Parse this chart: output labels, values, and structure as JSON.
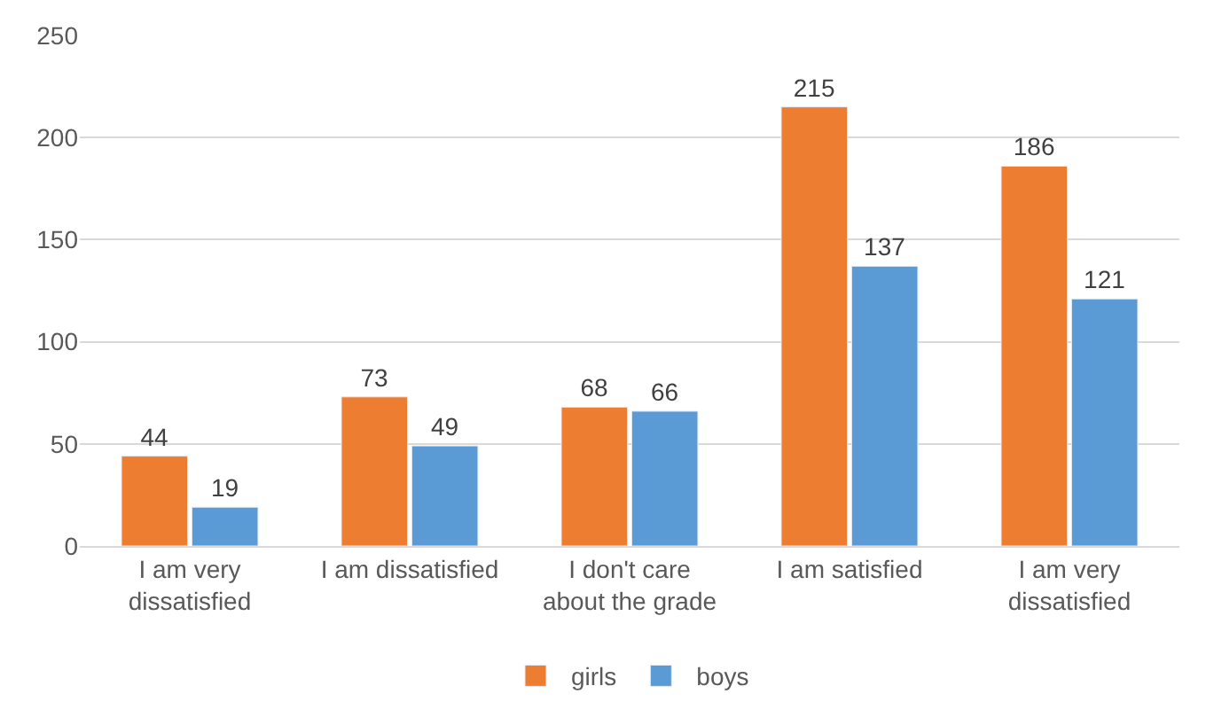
{
  "chart_data": {
    "type": "bar",
    "categories": [
      "I am very dissatisfied",
      "I am dissatisfied",
      "I don't care about the grade",
      "I am satisfied",
      "I am very dissatisfied"
    ],
    "series": [
      {
        "name": "girls",
        "color": "#ed7d31",
        "values": [
          44,
          73,
          68,
          215,
          186
        ]
      },
      {
        "name": "boys",
        "color": "#5b9bd5",
        "values": [
          19,
          49,
          66,
          137,
          121
        ]
      }
    ],
    "ylim": [
      0,
      250
    ],
    "yticks": [
      0,
      50,
      100,
      150,
      200,
      250
    ],
    "grid": "y",
    "legend": "bottom",
    "data_labels": true
  }
}
